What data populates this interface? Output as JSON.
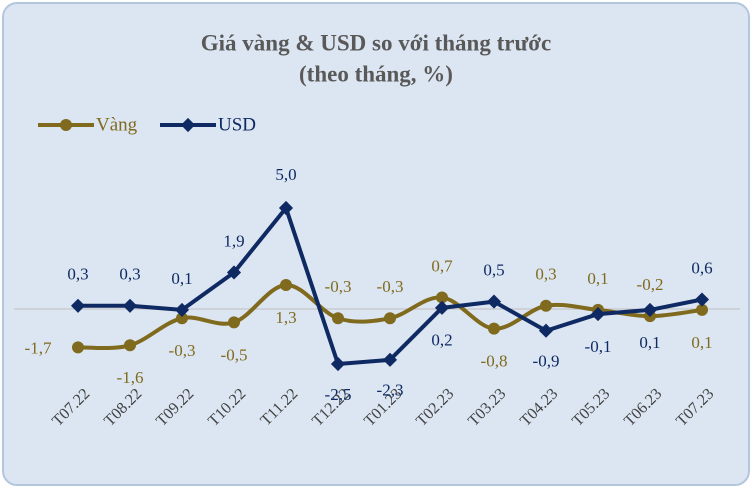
{
  "chart_data": {
    "type": "line",
    "title": "Giá vàng & USD so với tháng trước",
    "subtitle": "(theo tháng, %)",
    "categories": [
      "T07.22",
      "T08.22",
      "T09.22",
      "T10.22",
      "T11.22",
      "T12.22",
      "T01.23",
      "T02.23",
      "T03.23",
      "T04.23",
      "T05.23",
      "T06.23",
      "T07.23"
    ],
    "series": [
      {
        "name": "Vàng",
        "color": "#7f6a1e",
        "values": [
          -1.7,
          -1.6,
          -0.3,
          -0.5,
          1.3,
          -0.3,
          -0.3,
          0.7,
          -0.8,
          0.3,
          0.1,
          -0.2,
          0.1
        ],
        "value_labels": [
          "-1,7",
          "-1,6",
          "-0,3",
          "-0,5",
          "1,3",
          "-0,3",
          "-0,3",
          "0,7",
          "-0,8",
          "0,3",
          "0,1",
          "-0,2",
          "0,1"
        ]
      },
      {
        "name": "USD",
        "color": "#0f2a63",
        "values": [
          0.3,
          0.3,
          0.1,
          1.9,
          5.0,
          -2.5,
          -2.3,
          0.2,
          0.5,
          -0.9,
          -0.1,
          0.1,
          0.6
        ],
        "value_labels": [
          "0,3",
          "0,3",
          "0,1",
          "1,9",
          "5,0",
          "-2,5",
          "-2,3",
          "0,2",
          "0,5",
          "-0,9",
          "-0,1",
          "0,1",
          "0,6"
        ]
      }
    ],
    "legend": "top-left"
  }
}
